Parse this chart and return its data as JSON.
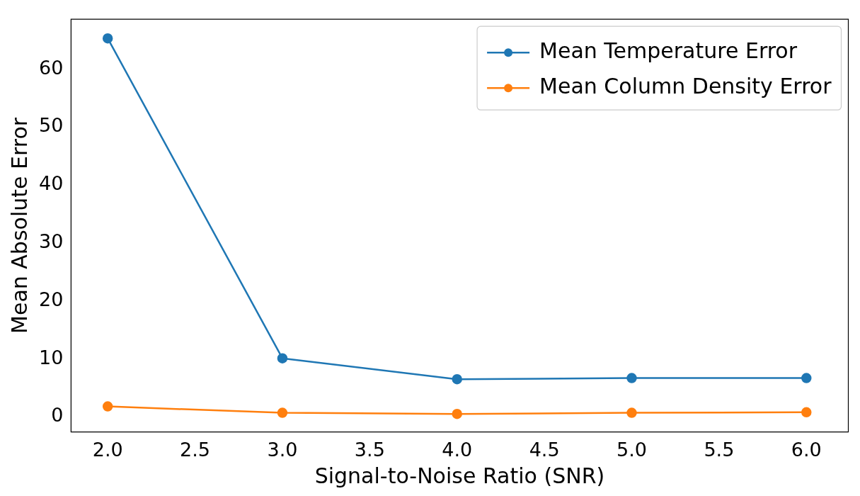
{
  "chart_data": {
    "type": "line",
    "xlabel": "Signal-to-Noise Ratio (SNR)",
    "ylabel": "Mean Absolute Error",
    "x": [
      2.0,
      3.0,
      4.0,
      5.0,
      6.0
    ],
    "series": [
      {
        "name": "Mean Temperature Error",
        "color": "#1f77b4",
        "values": [
          65.3,
          10.1,
          6.5,
          6.7,
          6.7
        ]
      },
      {
        "name": "Mean Column Density Error",
        "color": "#ff7f0e",
        "values": [
          1.8,
          0.7,
          0.5,
          0.7,
          0.8
        ]
      }
    ],
    "xlim": [
      1.79,
      6.24
    ],
    "xticks": [
      {
        "value": 2,
        "label": "2.0"
      },
      {
        "value": 2.5,
        "label": "2.5"
      },
      {
        "value": 3,
        "label": "3.0"
      },
      {
        "value": 3.5,
        "label": "3.5"
      },
      {
        "value": 4,
        "label": "4.0"
      },
      {
        "value": 4.5,
        "label": "4.5"
      },
      {
        "value": 5,
        "label": "5.0"
      },
      {
        "value": 5.5,
        "label": "5.5"
      },
      {
        "value": 6,
        "label": "6.0"
      }
    ],
    "ylim": [
      -2.6,
      68.6
    ],
    "yticks": [
      0,
      10,
      20,
      30,
      40,
      50,
      60
    ],
    "grid": false,
    "legend": "top right",
    "marker": "circle",
    "line_style": "solid"
  }
}
